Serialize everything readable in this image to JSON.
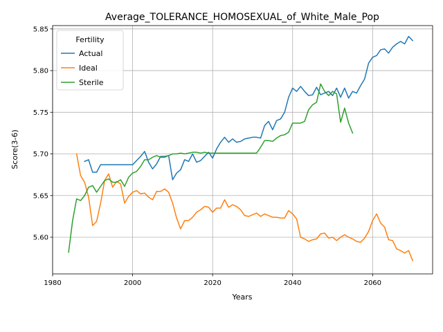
{
  "chart_data": {
    "type": "line",
    "title": "Average_TOLERANCE_HOMOSEXUAL_of_White_Male_Pop",
    "xlabel": "Years",
    "ylabel": "Score(3-6)",
    "xlim": [
      1980,
      2075
    ],
    "ylim": [
      5.556,
      5.854
    ],
    "xticks": [
      1980,
      2000,
      2020,
      2040,
      2060
    ],
    "xtick_labels": [
      "1980",
      "2000",
      "2020",
      "2040",
      "2060"
    ],
    "yticks": [
      5.6,
      5.65,
      5.7,
      5.75,
      5.8,
      5.85
    ],
    "ytick_labels": [
      "5.60",
      "5.65",
      "5.70",
      "5.75",
      "5.80",
      "5.85"
    ],
    "grid": true,
    "legend": {
      "title": "Fertility",
      "placement": "top-left"
    },
    "series": [
      {
        "name": "Actual",
        "color": "#1f77b4",
        "x": [
          1988,
          1989,
          1990,
          1991,
          1992,
          1993,
          1994,
          1995,
          1996,
          1997,
          1998,
          1999,
          2000,
          2001,
          2002,
          2003,
          2004,
          2005,
          2006,
          2007,
          2008,
          2009,
          2010,
          2011,
          2012,
          2013,
          2014,
          2015,
          2016,
          2017,
          2018,
          2019,
          2020,
          2021,
          2022,
          2023,
          2024,
          2025,
          2026,
          2027,
          2028,
          2029,
          2030,
          2031,
          2032,
          2033,
          2034,
          2035,
          2036,
          2037,
          2038,
          2039,
          2040,
          2041,
          2042,
          2043,
          2044,
          2045,
          2046,
          2047,
          2048,
          2049,
          2050,
          2051,
          2052,
          2053,
          2054,
          2055,
          2056,
          2057,
          2058,
          2059,
          2060,
          2061,
          2062,
          2063,
          2064,
          2065,
          2066,
          2067,
          2068,
          2069,
          2070
        ],
        "y": [
          5.691,
          5.693,
          5.678,
          5.678,
          5.687,
          5.687,
          5.687,
          5.687,
          5.687,
          5.687,
          5.687,
          5.687,
          5.687,
          5.692,
          5.697,
          5.703,
          5.69,
          5.682,
          5.688,
          5.697,
          5.697,
          5.698,
          5.669,
          5.677,
          5.681,
          5.693,
          5.691,
          5.7,
          5.69,
          5.692,
          5.697,
          5.702,
          5.695,
          5.706,
          5.714,
          5.72,
          5.714,
          5.718,
          5.714,
          5.715,
          5.718,
          5.719,
          5.72,
          5.72,
          5.719,
          5.734,
          5.739,
          5.729,
          5.74,
          5.742,
          5.75,
          5.768,
          5.779,
          5.775,
          5.781,
          5.775,
          5.77,
          5.771,
          5.78,
          5.771,
          5.773,
          5.775,
          5.77,
          5.779,
          5.768,
          5.779,
          5.767,
          5.775,
          5.773,
          5.782,
          5.79,
          5.809,
          5.816,
          5.818,
          5.825,
          5.826,
          5.821,
          5.828,
          5.832,
          5.835,
          5.832,
          5.841,
          5.836
        ]
      },
      {
        "name": "Ideal",
        "color": "#ff7f0e",
        "x": [
          1986,
          1987,
          1988,
          1989,
          1990,
          1991,
          1992,
          1993,
          1994,
          1995,
          1996,
          1997,
          1998,
          1999,
          2000,
          2001,
          2002,
          2003,
          2004,
          2005,
          2006,
          2007,
          2008,
          2009,
          2010,
          2011,
          2012,
          2013,
          2014,
          2015,
          2016,
          2017,
          2018,
          2019,
          2020,
          2021,
          2022,
          2023,
          2024,
          2025,
          2026,
          2027,
          2028,
          2029,
          2030,
          2031,
          2032,
          2033,
          2034,
          2035,
          2036,
          2037,
          2038,
          2039,
          2040,
          2041,
          2042,
          2043,
          2044,
          2045,
          2046,
          2047,
          2048,
          2049,
          2050,
          2051,
          2052,
          2053,
          2054,
          2055,
          2056,
          2057,
          2058,
          2059,
          2060,
          2061,
          2062,
          2063,
          2064,
          2065,
          2066,
          2067,
          2068,
          2069,
          2070
        ],
        "y": [
          5.7,
          5.674,
          5.666,
          5.648,
          5.614,
          5.619,
          5.641,
          5.668,
          5.676,
          5.66,
          5.667,
          5.664,
          5.641,
          5.649,
          5.654,
          5.656,
          5.652,
          5.653,
          5.648,
          5.645,
          5.655,
          5.655,
          5.658,
          5.654,
          5.641,
          5.623,
          5.61,
          5.62,
          5.62,
          5.624,
          5.63,
          5.633,
          5.637,
          5.636,
          5.63,
          5.635,
          5.635,
          5.645,
          5.636,
          5.639,
          5.637,
          5.633,
          5.626,
          5.625,
          5.627,
          5.629,
          5.625,
          5.628,
          5.626,
          5.624,
          5.624,
          5.623,
          5.623,
          5.632,
          5.628,
          5.622,
          5.6,
          5.598,
          5.595,
          5.597,
          5.598,
          5.604,
          5.605,
          5.599,
          5.6,
          5.596,
          5.6,
          5.603,
          5.6,
          5.598,
          5.595,
          5.594,
          5.599,
          5.607,
          5.62,
          5.628,
          5.617,
          5.612,
          5.597,
          5.596,
          5.586,
          5.584,
          5.581,
          5.584,
          5.572
        ]
      },
      {
        "name": "Sterile",
        "color": "#2ca02c",
        "x": [
          1984,
          1985,
          1986,
          1987,
          1988,
          1989,
          1990,
          1991,
          1992,
          1993,
          1994,
          1995,
          1996,
          1997,
          1998,
          1999,
          2000,
          2001,
          2002,
          2003,
          2004,
          2005,
          2006,
          2007,
          2008,
          2009,
          2010,
          2011,
          2012,
          2013,
          2014,
          2015,
          2016,
          2017,
          2018,
          2019,
          2020,
          2021,
          2022,
          2023,
          2024,
          2025,
          2026,
          2027,
          2028,
          2029,
          2030,
          2031,
          2032,
          2033,
          2034,
          2035,
          2036,
          2037,
          2038,
          2039,
          2040,
          2041,
          2042,
          2043,
          2044,
          2045,
          2046,
          2047,
          2048,
          2049,
          2050,
          2051,
          2052,
          2053,
          2054,
          2055
        ],
        "y": [
          5.582,
          5.62,
          5.646,
          5.644,
          5.65,
          5.66,
          5.662,
          5.654,
          5.661,
          5.668,
          5.67,
          5.666,
          5.666,
          5.669,
          5.661,
          5.672,
          5.677,
          5.679,
          5.685,
          5.693,
          5.693,
          5.696,
          5.698,
          5.696,
          5.696,
          5.698,
          5.7,
          5.7,
          5.701,
          5.7,
          5.701,
          5.702,
          5.702,
          5.701,
          5.702,
          5.701,
          5.701,
          5.701,
          5.701,
          5.701,
          5.701,
          5.701,
          5.701,
          5.701,
          5.701,
          5.701,
          5.701,
          5.701,
          5.708,
          5.716,
          5.716,
          5.715,
          5.719,
          5.722,
          5.723,
          5.726,
          5.737,
          5.737,
          5.737,
          5.739,
          5.753,
          5.759,
          5.762,
          5.784,
          5.775,
          5.77,
          5.775,
          5.772,
          5.738,
          5.755,
          5.737,
          5.725
        ]
      }
    ]
  }
}
